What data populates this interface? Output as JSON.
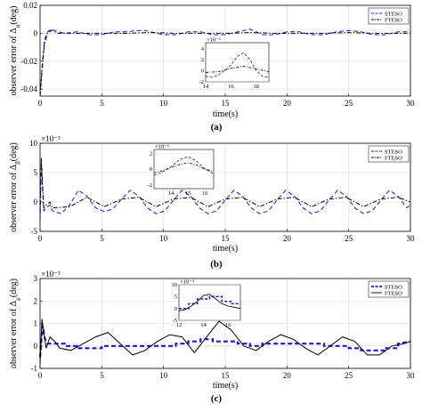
{
  "chart_data": [
    {
      "type": "line",
      "caption": "(a)",
      "xlabel": "time(s)",
      "ylabel_main": "observer error of Δ",
      "ylabel_sub": "α",
      "ylabel_unit": "(deg)",
      "xlim": [
        0,
        30
      ],
      "ylim": [
        -0.045,
        0.02
      ],
      "xticks": [
        0,
        5,
        10,
        15,
        20,
        25,
        30
      ],
      "yticks": [
        -0.04,
        -0.02,
        0,
        0.02
      ],
      "ytick_labels": [
        "-0.04",
        "-0.02",
        "0",
        "0.02"
      ],
      "grid": true,
      "legend_position": "top-right",
      "series": [
        {
          "name": "STESO",
          "style": "dashed",
          "color": "#1a1acc",
          "x": [
            0,
            0.15,
            0.35,
            0.6,
            0.9,
            1.2,
            1.5,
            2,
            3,
            4,
            5,
            6,
            7,
            8,
            8.5,
            9,
            10,
            11,
            12,
            13,
            14,
            15,
            16,
            17,
            17.5,
            18,
            19,
            20,
            21,
            22,
            23,
            24,
            25,
            26,
            27,
            28,
            29,
            30
          ],
          "y": [
            -0.045,
            -0.025,
            -0.005,
            0.001,
            0.003,
            0.002,
            0.001,
            0,
            0.001,
            -0.001,
            -0.001,
            0.001,
            0.001,
            0.002,
            0.002,
            0.001,
            -0.001,
            -0.001,
            0.001,
            0.001,
            -0.001,
            -0.001,
            0.001,
            0.003,
            0.001,
            -0.001,
            -0.001,
            0.001,
            0.001,
            -0.001,
            -0.001,
            0.001,
            0.002,
            0.001,
            -0.001,
            -0.001,
            0.001,
            0.001
          ]
        },
        {
          "name": "FTESO",
          "style": "dashdot",
          "color": "#000000",
          "x": [
            0,
            0.15,
            0.35,
            0.6,
            0.9,
            1.2,
            1.5,
            3,
            5,
            7,
            9,
            11,
            13,
            15,
            17,
            19,
            21,
            23,
            25,
            27,
            29,
            30
          ],
          "y": [
            -0.045,
            -0.028,
            -0.008,
            0,
            0.002,
            0.001,
            0,
            0,
            0,
            0,
            0.0005,
            0,
            0,
            0,
            0.0005,
            0,
            0,
            0,
            0.0005,
            0,
            0,
            0
          ]
        }
      ],
      "inset": {
        "exponent": "×10⁻³",
        "xlim": [
          14,
          19
        ],
        "ylim": [
          -2,
          5
        ],
        "xticks": [
          14,
          16,
          18
        ],
        "yticks": [
          -2,
          0,
          2,
          4
        ],
        "series": [
          {
            "name": "STESO",
            "x": [
              14,
              14.5,
              15,
              15.5,
              16,
              16.5,
              17,
              17.5,
              18,
              18.5,
              19
            ],
            "y": [
              -1,
              -1.2,
              -0.8,
              0,
              1,
              2.5,
              3.2,
              2,
              0,
              -1,
              -1.2
            ]
          },
          {
            "name": "FTESO",
            "x": [
              14,
              15,
              16,
              17,
              18,
              19
            ],
            "y": [
              -0.3,
              -0.2,
              0.4,
              0.8,
              0.3,
              -0.2
            ]
          }
        ]
      }
    },
    {
      "type": "line",
      "caption": "(b)",
      "xlabel": "time(s)",
      "ylabel_main": "observer error of Δ",
      "ylabel_sub": "β",
      "ylabel_unit": "(deg)",
      "exponent": "×10⁻³",
      "xlim": [
        0,
        30
      ],
      "ylim": [
        -5,
        10
      ],
      "xticks": [
        0,
        5,
        10,
        15,
        20,
        25,
        30
      ],
      "yticks": [
        -5,
        0,
        5,
        10
      ],
      "ytick_labels": [
        "-5",
        "0",
        "5",
        "10"
      ],
      "grid": true,
      "legend_position": "top-right",
      "series": [
        {
          "name": "STESO",
          "style": "dashed",
          "color": "#1a1acc",
          "x": [
            0,
            0.1,
            0.2,
            0.3,
            0.5,
            0.8,
            1,
            1.7,
            2.4,
            3.1,
            3.8,
            4.5,
            5.2,
            5.9,
            6.6,
            7.3,
            8,
            8.7,
            9.4,
            10.1,
            10.8,
            11.5,
            12.2,
            12.9,
            13.6,
            14.3,
            15,
            15.7,
            16.4,
            17.1,
            17.8,
            18.5,
            19.2,
            19.9,
            20.6,
            21.3,
            22,
            22.7,
            23.4,
            24.1,
            24.8,
            25.5,
            26.2,
            26.9,
            27.6,
            28.3,
            29,
            29.7,
            30
          ],
          "y": [
            -3,
            7,
            2,
            -1.5,
            -1,
            -0.5,
            -1.5,
            -2,
            -0.5,
            2,
            1,
            -1,
            -1.6,
            -1.2,
            0.5,
            2,
            1,
            -1,
            -2,
            -1.5,
            0.3,
            2,
            1,
            -1,
            -2,
            -1.5,
            0.3,
            2,
            1,
            -1,
            -2,
            -1.5,
            0.3,
            2,
            1,
            -1,
            -2,
            -1.5,
            0.3,
            2,
            1,
            -1,
            -2,
            -1.5,
            0.3,
            2,
            1,
            -1,
            -0.5
          ]
        },
        {
          "name": "FTESO",
          "style": "dashdot",
          "color": "#000000",
          "x": [
            0,
            0.1,
            0.2,
            0.3,
            0.5,
            0.8,
            1,
            2.4,
            3.8,
            5.2,
            6.6,
            8,
            9.4,
            10.8,
            12.2,
            13.6,
            15,
            16.4,
            17.8,
            19.2,
            20.6,
            22,
            23.4,
            24.8,
            26.2,
            27.6,
            29,
            30
          ],
          "y": [
            -2,
            7.5,
            3,
            -1,
            -0.5,
            0,
            -1,
            -0.8,
            0.8,
            -0.8,
            0.5,
            0.8,
            -0.8,
            0.5,
            0.8,
            -0.8,
            0.5,
            0.8,
            -0.8,
            0.5,
            0.8,
            -0.8,
            0.5,
            0.8,
            -0.8,
            0.5,
            0.8,
            0
          ]
        }
      ],
      "inset": {
        "exponent": "×10⁻³",
        "xlim": [
          13,
          16.5
        ],
        "ylim": [
          -2.5,
          2.5
        ],
        "xticks": [
          14,
          15,
          16
        ],
        "yticks": [
          -2,
          0,
          2
        ],
        "series": [
          {
            "name": "STESO",
            "x": [
              13,
              13.5,
              14,
              14.5,
              15,
              15.5,
              16,
              16.5
            ],
            "y": [
              -0.8,
              -0.4,
              0.3,
              1.2,
              1.6,
              1,
              0,
              -0.6
            ]
          },
          {
            "name": "FTESO",
            "x": [
              13,
              13.5,
              14,
              14.5,
              15,
              15.5,
              16,
              16.5
            ],
            "y": [
              -0.5,
              -0.2,
              0.2,
              0.6,
              0.8,
              0.5,
              0,
              -0.3
            ]
          }
        ]
      }
    },
    {
      "type": "line",
      "caption": "(c)",
      "xlabel": "time(s)",
      "ylabel_main": "observer error of Δ",
      "ylabel_sub": "μ",
      "ylabel_unit": "(deg)",
      "exponent": "×10⁻³",
      "xlim": [
        0,
        30
      ],
      "ylim": [
        -1,
        3
      ],
      "xticks": [
        0,
        5,
        10,
        15,
        20,
        25,
        30
      ],
      "yticks": [
        -1,
        0,
        1,
        2,
        3
      ],
      "ytick_labels": [
        "-1",
        "0",
        "1",
        "2",
        "3"
      ],
      "grid": true,
      "legend_position": "top-right",
      "series": [
        {
          "name": "STESO",
          "style": "dashed",
          "color": "#1a1acc",
          "x": [
            0,
            0.2,
            0.4,
            0.6,
            1,
            2,
            2,
            3,
            3,
            5,
            5,
            11,
            11,
            12,
            12,
            13,
            13,
            14,
            14,
            16,
            16,
            17,
            17,
            18,
            18,
            23,
            23,
            25,
            25,
            26,
            26,
            28,
            28,
            29,
            29,
            30
          ],
          "y": [
            -0.5,
            0.9,
            0.3,
            0.1,
            0.1,
            0.1,
            0,
            0,
            -0.1,
            -0.1,
            0,
            0,
            0.1,
            0.1,
            0.2,
            0.2,
            0.3,
            0.3,
            0.2,
            0.2,
            0.1,
            0.1,
            0,
            0,
            0.1,
            0.1,
            0,
            0,
            -0.1,
            -0.1,
            -0.2,
            -0.2,
            -0.1,
            -0.1,
            0.1,
            0.2
          ]
        },
        {
          "name": "FTESO",
          "style": "solid",
          "color": "#000000",
          "x": [
            0,
            0.15,
            0.3,
            0.5,
            0.8,
            1.2,
            1.6,
            2.5,
            3.5,
            4.5,
            5.5,
            6.5,
            7.5,
            8.5,
            9.5,
            10.5,
            11.5,
            12.5,
            13.5,
            14.5,
            15.5,
            16.5,
            17.5,
            18.5,
            19.5,
            20.5,
            21.5,
            22.5,
            23.5,
            24.5,
            25.5,
            26.5,
            27.5,
            28.5,
            29.5,
            30
          ],
          "y": [
            -0.8,
            1.2,
            0.6,
            -0.1,
            0.4,
            0.2,
            -0.1,
            -0.2,
            0.1,
            0.4,
            0.6,
            0.1,
            -0.4,
            -0.2,
            0.2,
            0.5,
            0.4,
            -0.3,
            0.4,
            1.1,
            0.7,
            0.0,
            -0.2,
            0.2,
            0.5,
            0.3,
            -0.1,
            -0.4,
            0.0,
            0.4,
            0.2,
            -0.4,
            -0.4,
            0.0,
            0.1,
            0.2
          ]
        }
      ],
      "inset": {
        "exponent": "×10⁻⁴",
        "xlim": [
          12,
          17
        ],
        "ylim": [
          -5,
          10
        ],
        "xticks": [
          12,
          14,
          16
        ],
        "yticks": [
          -5,
          0,
          5,
          10
        ],
        "series": [
          {
            "name": "STESO",
            "x": [
              12,
              12.8,
              12.8,
              13.5,
              13.5,
              14.5,
              14.5,
              15.5,
              15.5,
              16.3,
              16.3,
              17
            ],
            "y": [
              0,
              0,
              2,
              2,
              4,
              4,
              5,
              5,
              3,
              3,
              2,
              2
            ]
          },
          {
            "name": "FTESO",
            "x": [
              12,
              12.5,
              13,
              13.5,
              14,
              14.5,
              15,
              15.5,
              16,
              16.5,
              17
            ],
            "y": [
              -1,
              -0.5,
              1,
              3,
              5.5,
              6,
              4,
              2,
              1,
              0.5,
              0
            ]
          }
        ]
      }
    }
  ]
}
